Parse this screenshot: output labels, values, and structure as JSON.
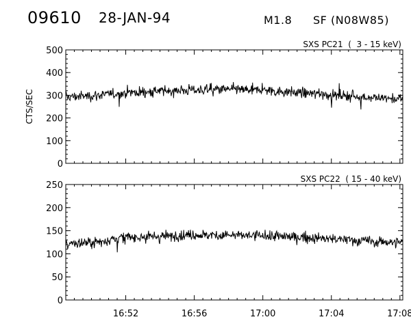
{
  "header": {
    "event_id": "09610",
    "date": "28-JAN-94",
    "goes_class": "M1.8",
    "location": "SF (N08W85)"
  },
  "chart_data": [
    {
      "type": "line",
      "title": "SXS PC21  (  3 - 15 keV)",
      "ylabel": "CTS/SEC",
      "xlabel": "",
      "x_range": [
        "16:48:30",
        "17:08:10"
      ],
      "ylim": [
        0,
        500
      ],
      "yticks": [
        0,
        100,
        200,
        300,
        400,
        500
      ],
      "xticks": [],
      "grid": false,
      "series": [
        {
          "x": [
            "16:48:30",
            "16:50:00",
            "16:52:00",
            "16:54:00",
            "16:56:00",
            "16:58:00",
            "17:00:00",
            "17:02:00",
            "17:04:00",
            "17:06:00",
            "17:08:10"
          ],
          "values": [
            292,
            298,
            310,
            318,
            324,
            326,
            322,
            312,
            302,
            292,
            282
          ]
        }
      ]
    },
    {
      "type": "line",
      "title": "SXS PC22  ( 15 - 40 keV)",
      "ylabel": "",
      "xlabel": "",
      "x_range": [
        "16:48:30",
        "17:08:10"
      ],
      "ylim": [
        0,
        250
      ],
      "yticks": [
        0,
        50,
        100,
        150,
        200,
        250
      ],
      "xticks": [
        "16:52",
        "16:56",
        "17:00",
        "17:04",
        "17:08"
      ],
      "grid": false,
      "series": [
        {
          "x": [
            "16:48:30",
            "16:50:00",
            "16:51:00",
            "16:52:00",
            "16:54:00",
            "16:56:00",
            "16:58:00",
            "17:00:00",
            "17:02:00",
            "17:04:00",
            "17:06:00",
            "17:08:10"
          ],
          "values": [
            122,
            124,
            130,
            136,
            138,
            141,
            140,
            139,
            136,
            132,
            128,
            124
          ]
        }
      ]
    }
  ]
}
